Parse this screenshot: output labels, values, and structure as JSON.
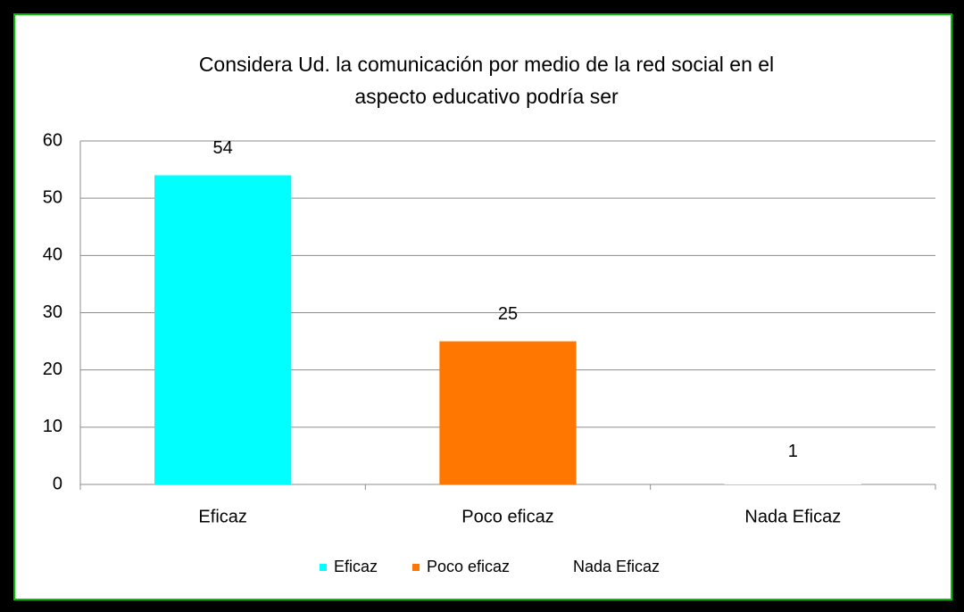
{
  "chart_data": {
    "type": "bar",
    "title": [
      "Considera Ud. la comunicación por medio de la red social en el",
      "aspecto educativo podría ser"
    ],
    "categories": [
      "Eficaz",
      "Poco eficaz",
      "Nada Eficaz"
    ],
    "values": [
      54,
      25,
      1
    ],
    "colors": [
      "#00ffff",
      "#ff7700",
      "#ffffff"
    ],
    "ylim": [
      0,
      60
    ],
    "yticks": [
      0,
      10,
      20,
      30,
      40,
      50,
      60
    ],
    "grid": true,
    "legend": "bottom"
  }
}
